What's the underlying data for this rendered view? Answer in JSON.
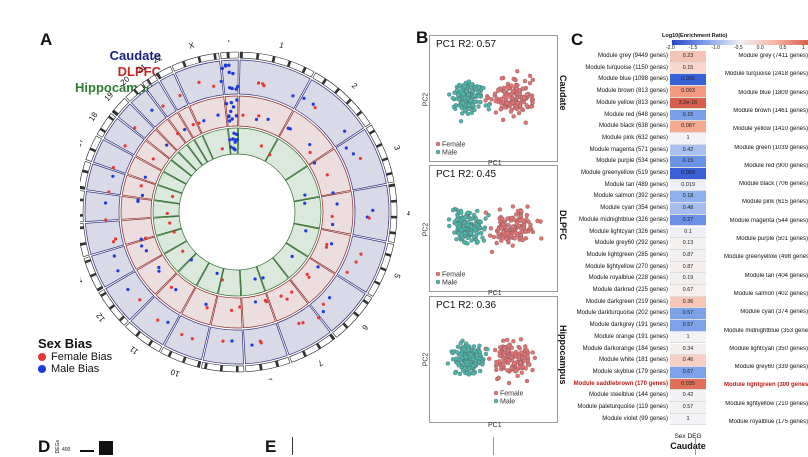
{
  "panel_a": {
    "letter": "A",
    "tracks": [
      {
        "name": "Caudate",
        "color": "#1a237e"
      },
      {
        "name": "DLPFC",
        "color": "#c62828"
      },
      {
        "name": "Hippocampus",
        "color": "#2e7d32"
      }
    ],
    "chromosomes": [
      "1",
      "2",
      "3",
      "4",
      "5",
      "6",
      "7",
      "8",
      "9",
      "10",
      "11",
      "12",
      "13",
      "14",
      "15",
      "16",
      "17",
      "18",
      "19",
      "20",
      "21",
      "22",
      "X",
      "Y"
    ],
    "sex_bias_title": "Sex Bias",
    "sex_bias_items": [
      {
        "label": "Female Bias",
        "color": "#e53935"
      },
      {
        "label": "Male Bias",
        "color": "#1e3adb"
      }
    ]
  },
  "panel_b": {
    "letter": "B",
    "plots": [
      {
        "region": "Caudate",
        "title": "PC1  R2: 0.57",
        "xlabel": "PC1",
        "ylabel": "PC2",
        "legend": [
          "Female",
          "Male"
        ]
      },
      {
        "region": "DLPFC",
        "title": "PC1  R2: 0.45",
        "xlabel": "PC1",
        "ylabel": "PC2",
        "legend": [
          "Female",
          "Male"
        ]
      },
      {
        "region": "Hippocampus",
        "title": "PC1  R2: 0.36",
        "xlabel": "PC1",
        "ylabel": "PC2",
        "legend": [
          "Female",
          "Male"
        ]
      }
    ],
    "colors": {
      "female": "#e57373",
      "male": "#4db6ac"
    }
  },
  "panel_c": {
    "letter": "C",
    "colorbar_title": "Log10(Enrichment Ratio)",
    "colorbar_ticks": [
      "-2.0",
      "-1.5",
      "-1.0",
      "-0.5",
      "0.0",
      "0.5",
      "1"
    ],
    "column_label": "Sex DEG",
    "column_title": "Caudate",
    "highlight_color": "#b71c1c",
    "modules": [
      {
        "label": "Module grey (9449 genes)",
        "value": "0.23",
        "color": "#f6c4b6"
      },
      {
        "label": "Module turquoise (1150 genes)",
        "value": "0.15",
        "color": "#f9d7cc"
      },
      {
        "label": "Module blue (1098 genes)",
        "value": "0.005",
        "color": "#3a62d8"
      },
      {
        "label": "Module brown (813 genes)",
        "value": "0.093",
        "color": "#f29a82"
      },
      {
        "label": "Module yellow (813 genes)",
        "value": "3.2e-16",
        "color": "#d6604d"
      },
      {
        "label": "Module red (648 genes)",
        "value": "0.15",
        "color": "#7aa0ea"
      },
      {
        "label": "Module black (638 genes)",
        "value": "0.087",
        "color": "#f4a990"
      },
      {
        "label": "Module pink (632 genes)",
        "value": "1",
        "color": "#f2f2f7"
      },
      {
        "label": "Module magenta (571 genes)",
        "value": "0.42",
        "color": "#a9c0f0"
      },
      {
        "label": "Module purple (534 genes)",
        "value": "0.15",
        "color": "#6a92e6"
      },
      {
        "label": "Module greenyellow (519 genes)",
        "value": "0.093",
        "color": "#3b5fd5"
      },
      {
        "label": "Module tan (489 genes)",
        "value": "0.019",
        "color": "#eef0f9"
      },
      {
        "label": "Module salmon (392 genes)",
        "value": "0.18",
        "color": "#8fb0ee"
      },
      {
        "label": "Module cyan (354 genes)",
        "value": "0.48",
        "color": "#a6bdf0"
      },
      {
        "label": "Module midnightblue (326 genes)",
        "value": "0.27",
        "color": "#6b90e5"
      },
      {
        "label": "Module lightcyan (326 genes)",
        "value": "0.1",
        "color": "#eeeff7"
      },
      {
        "label": "Module grey60 (292 genes)",
        "value": "0.13",
        "color": "#f4f1f1"
      },
      {
        "label": "Module lightgreen (285 genes)",
        "value": "0.87",
        "color": "#f2efef"
      },
      {
        "label": "Module lightyellow (270 genes)",
        "value": "0.87",
        "color": "#f5eeee"
      },
      {
        "label": "Module royalblue (228 genes)",
        "value": "0.19",
        "color": "#f2efef"
      },
      {
        "label": "Module darkred (225 genes)",
        "value": "0.67",
        "color": "#f6f0ee"
      },
      {
        "label": "Module darkgreen (219 genes)",
        "value": "0.36",
        "color": "#f6c6b8"
      },
      {
        "label": "Module darkturquoise (202 genes)",
        "value": "0.57",
        "color": "#7ea2ea"
      },
      {
        "label": "Module darkgrey (191 genes)",
        "value": "0.57",
        "color": "#7ea2ea"
      },
      {
        "label": "Module orange (191 genes)",
        "value": "1",
        "color": "#f3f3f6"
      },
      {
        "label": "Module darkorange (184 genes)",
        "value": "0.34",
        "color": "#f3efef"
      },
      {
        "label": "Module white (181 genes)",
        "value": "0.46",
        "color": "#f7d0c3"
      },
      {
        "label": "Module skyblue (179 genes)",
        "value": "0.67",
        "color": "#7ea2ea"
      },
      {
        "label": "Module saddlebrown (170 genes)",
        "value": "0.035",
        "color": "#e0705a",
        "highlight": true
      },
      {
        "label": "Module steelblue (144 genes)",
        "value": "0.42",
        "color": "#f2f2f4"
      },
      {
        "label": "Module paleturquoise (119 genes)",
        "value": "0.57",
        "color": "#f2f2f4"
      },
      {
        "label": "Module violet (99 genes)",
        "value": "1",
        "color": "#f3f3f6"
      }
    ],
    "modules_second": [
      {
        "label": "Module grey (7411 genes)"
      },
      {
        "label": "Module turquoise (2418 genes)"
      },
      {
        "label": "Module blue (1809 genes)"
      },
      {
        "label": "Module brown (1461 genes)"
      },
      {
        "label": "Module yellow (1410 genes)"
      },
      {
        "label": "Module green (1039 genes)"
      },
      {
        "label": "Module red (900 genes)"
      },
      {
        "label": "Module black (706 genes)"
      },
      {
        "label": "Module pink (615 genes)"
      },
      {
        "label": "Module magenta (544 genes)"
      },
      {
        "label": "Module purple (501 genes)"
      },
      {
        "label": "Module greenyellow (498 genes)"
      },
      {
        "label": "Module tan (404 genes)"
      },
      {
        "label": "Module salmon (402 genes)"
      },
      {
        "label": "Module cyan (374 genes)"
      },
      {
        "label": "Module midnightblue (353 genes)"
      },
      {
        "label": "Module lightcyan (350 genes)"
      },
      {
        "label": "Module grey60 (339 genes)"
      },
      {
        "label": "Module lightgreen (300 genes)",
        "highlight": true
      },
      {
        "label": "Module lightyellow (210 genes)"
      },
      {
        "label": "Module royalblue (175 genes)"
      }
    ]
  },
  "panel_d": {
    "letter": "D"
  },
  "panel_e": {
    "letter": "E"
  },
  "chart_data": [
    {
      "type": "scatter",
      "title": "",
      "panel": "A (circos)",
      "series": [
        {
          "name": "Female Bias",
          "color": "#e53935"
        },
        {
          "name": "Male Bias",
          "color": "#1e3adb"
        }
      ],
      "categories": [
        "Caudate",
        "DLPFC",
        "Hippocampus"
      ]
    },
    {
      "type": "scatter",
      "panel": "B Caudate",
      "title": "PC1  R2: 0.57",
      "xlabel": "PC1",
      "ylabel": "PC2",
      "series": [
        {
          "name": "Female"
        },
        {
          "name": "Male"
        }
      ]
    },
    {
      "type": "scatter",
      "panel": "B DLPFC",
      "title": "PC1  R2: 0.45",
      "xlabel": "PC1",
      "ylabel": "PC2",
      "series": [
        {
          "name": "Female"
        },
        {
          "name": "Male"
        }
      ]
    },
    {
      "type": "scatter",
      "panel": "B Hippocampus",
      "title": "PC1  R2: 0.36",
      "xlabel": "PC1",
      "ylabel": "PC2",
      "series": [
        {
          "name": "Female"
        },
        {
          "name": "Male"
        }
      ]
    },
    {
      "type": "heatmap",
      "panel": "C",
      "title": "Log10(Enrichment Ratio)",
      "xlabel": "Sex DEG",
      "column": "Caudate",
      "color_range": [
        -2.0,
        1.0
      ]
    }
  ]
}
